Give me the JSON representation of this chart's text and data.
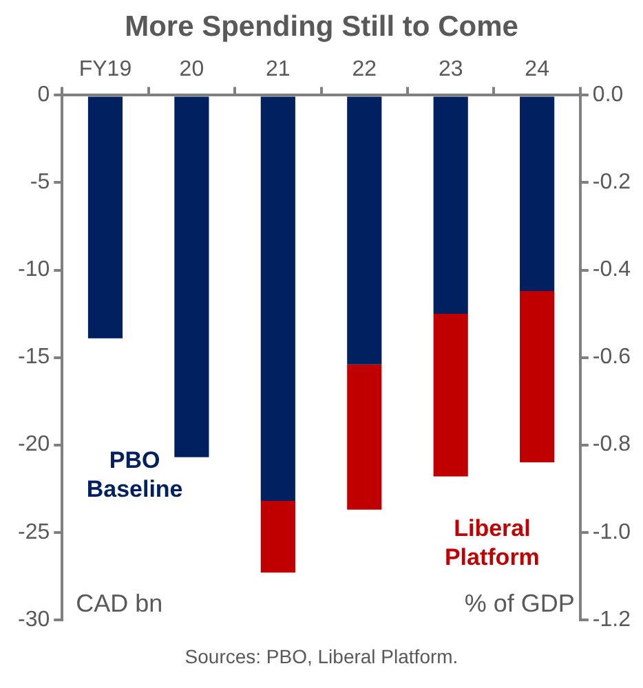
{
  "chart_data": {
    "type": "bar",
    "title": "More Spending Still to Come",
    "stacked": true,
    "grid": false,
    "legend": false,
    "categories": [
      "FY19",
      "20",
      "21",
      "22",
      "23",
      "24"
    ],
    "series": [
      {
        "name": "PBO Baseline",
        "color": "#002060",
        "values": [
          -13.9,
          -20.7,
          -23.2,
          -15.4,
          -12.5,
          -11.2
        ]
      },
      {
        "name": "Liberal Platform",
        "color": "#c00000",
        "values": [
          null,
          null,
          -4.1,
          -8.3,
          -9.3,
          -9.8
        ]
      }
    ],
    "ylim": [
      -30,
      0
    ],
    "yticks": [
      0,
      -5,
      -10,
      -15,
      -20,
      -25,
      -30
    ],
    "y2lim": [
      -1.2,
      0
    ],
    "y2ticks": [
      {
        "value": 0,
        "label": "0.0"
      },
      {
        "value": -0.2,
        "label": "-0.2"
      },
      {
        "value": -0.4,
        "label": "-0.4"
      },
      {
        "value": -0.6,
        "label": "-0.6"
      },
      {
        "value": -0.8,
        "label": "-0.8"
      },
      {
        "value": -1,
        "label": "-1.0"
      },
      {
        "value": -1.2,
        "label": "-1.2"
      }
    ],
    "ylabel": "CAD bn",
    "y2label": "% of GDP",
    "annotations": [
      "Sources: PBO, Liberal Platform."
    ]
  }
}
